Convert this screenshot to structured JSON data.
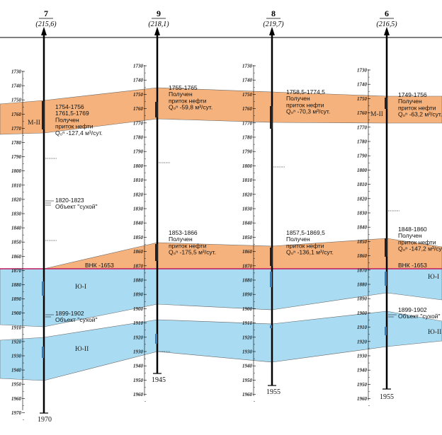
{
  "colors": {
    "oil": "#f6b27c",
    "water": "#a9dcf3",
    "owc_line": "#c2185b",
    "well": "#000000"
  },
  "wells": [
    {
      "number": "7",
      "altitude": "(215,6)",
      "bottom_depth": "1970",
      "depths": [
        "1730",
        "1740",
        "1750",
        "1760",
        "1770",
        "1780",
        "1790",
        "1800",
        "1810",
        "1820",
        "1830",
        "1840",
        "1850",
        "1860",
        "1870",
        "1880",
        "1890",
        "1900",
        "1910",
        "1920",
        "1930",
        "1940",
        "1950",
        "1960",
        "1970"
      ],
      "annotations": [
        {
          "lines": [
            "1754-1756",
            "1761,5-1769",
            "Получен",
            "приток нефти",
            "Q₀ⁿ -127,4 м³/сут."
          ]
        },
        {
          "lines": [
            "1820-1823",
            "Объект \"сухой\""
          ]
        },
        {
          "lines": [
            "1899-1902",
            "Объект \"сухой\""
          ]
        }
      ],
      "zones": [
        "М-II",
        "Ю-I",
        "Ю-II"
      ]
    },
    {
      "number": "9",
      "altitude": "(218,1)",
      "bottom_depth": "1945",
      "depths": [
        "1730",
        "1740",
        "1750",
        "1760",
        "1770",
        "1780",
        "1790",
        "1800",
        "1810",
        "1820",
        "1830",
        "1840",
        "1850",
        "1860",
        "1870",
        "1880",
        "1890",
        "1900",
        "1910",
        "1920",
        "1930",
        "1940",
        "1950",
        "1960"
      ],
      "annotations": [
        {
          "lines": [
            "1755-1765",
            "Получен",
            "приток нефти",
            "Q₀ⁿ -59,8 м³/сут."
          ]
        },
        {
          "lines": [
            "1853-1866",
            "Получен",
            "приток нефти",
            "Q₀ⁿ -175,5 м³/сут."
          ]
        }
      ]
    },
    {
      "number": "8",
      "altitude": "(219,7)",
      "bottom_depth": "1955",
      "depths": [
        "1730",
        "1740",
        "1750",
        "1760",
        "1770",
        "1780",
        "1790",
        "1800",
        "1810",
        "1820",
        "1830",
        "1840",
        "1850",
        "1860",
        "1870",
        "1880",
        "1890",
        "1900",
        "1910",
        "1920",
        "1930",
        "1940",
        "1950",
        "1960"
      ],
      "annotations": [
        {
          "lines": [
            "1758,5-1774,5",
            "Получен",
            "приток нефти",
            "Q₀ⁿ -70,3 м³/сут."
          ]
        },
        {
          "lines": [
            "1857,5-1869,5",
            "Получен",
            "приток нефти",
            "Q₀ⁿ -136,1 м³/сут."
          ]
        }
      ]
    },
    {
      "number": "6",
      "altitude": "(216,5)",
      "bottom_depth": "1955",
      "depths": [
        "1730",
        "1740",
        "1750",
        "1760",
        "1770",
        "1780",
        "1790",
        "1800",
        "1810",
        "1820",
        "1830",
        "1840",
        "1850",
        "1860",
        "1870",
        "1880",
        "1890",
        "1900",
        "1910",
        "1920",
        "1930",
        "1940",
        "1950",
        "1960"
      ],
      "annotations": [
        {
          "lines": [
            "1749-1756",
            "Получен",
            "приток нефти",
            "Q₀ⁿ -63,2 м³/сут."
          ]
        },
        {
          "lines": [
            "1848-1860",
            "Получен",
            "приток нефти",
            "Q₀ⁿ -147,2 м³/сут."
          ]
        },
        {
          "lines": [
            "1899-1902",
            "Объект \"сухой\""
          ]
        }
      ],
      "zones": [
        "М-II",
        "Ю-I",
        "Ю-II"
      ]
    }
  ],
  "owc_labels": [
    "ВНК -1653",
    "ВНК -1653"
  ]
}
